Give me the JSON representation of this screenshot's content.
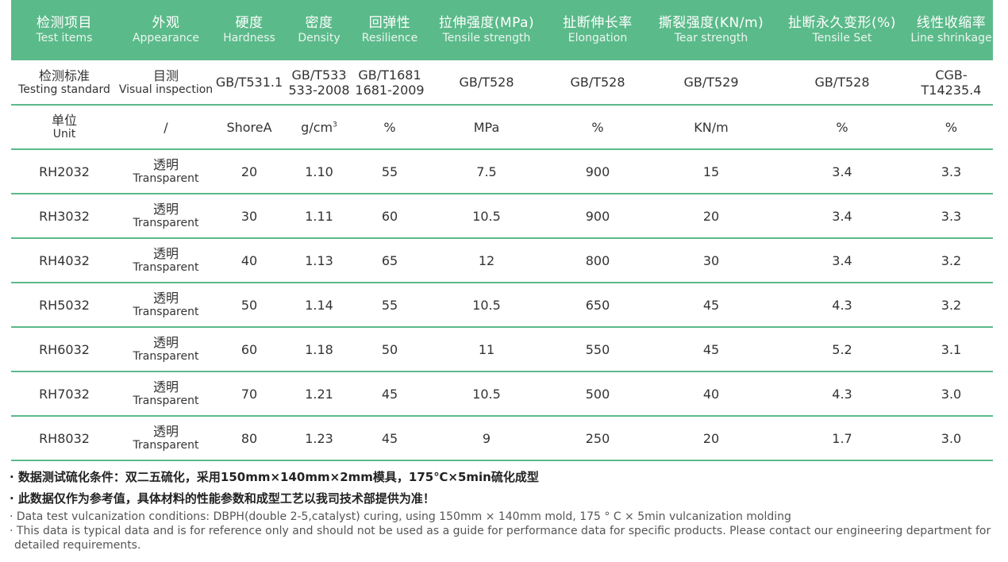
{
  "headers": [
    {
      "zh": "检测项目",
      "en": "Test items"
    },
    {
      "zh": "外观",
      "en": "Appearance"
    },
    {
      "zh": "硬度",
      "en": "Hardness"
    },
    {
      "zh": "密度",
      "en": "Density"
    },
    {
      "zh": "回弹性",
      "en": "Resilience"
    },
    {
      "zh": "拉伸强度(MPa)",
      "en": "Tensile strength"
    },
    {
      "zh": "扯断伸长率",
      "en": "Elongation"
    },
    {
      "zh": "撕裂强度(KN/m)",
      "en": "Tear strength"
    },
    {
      "zh": "扯断永久变形(%)",
      "en": "Tensile Set"
    },
    {
      "zh": "线性收缩率",
      "en": "Line shrinkage"
    }
  ],
  "standard_row": {
    "label_zh": "检测标准",
    "label_en": "Testing standard",
    "appearance_zh": "目测",
    "appearance_en": "Visual inspection",
    "hardness": "GB/T531.1",
    "density_l1": "GB/T533",
    "density_l2": "533-2008",
    "resilience_l1": "GB/T1681",
    "resilience_l2": "1681-2009",
    "tensile": "GB/T528",
    "elongation": "GB/T528",
    "tear": "GB/T529",
    "tensile_set": "GB/T528",
    "shrinkage": "CGB-T14235.4"
  },
  "unit_row": {
    "label_zh": "单位",
    "label_en": "Unit",
    "appearance": "/",
    "hardness": "ShoreA",
    "density": "g/cm",
    "density_sup": "3",
    "resilience": "%",
    "tensile": "MPa",
    "elongation": "%",
    "tear": "KN/m",
    "tensile_set": "%",
    "shrinkage": "%"
  },
  "rows": [
    {
      "model": "RH2032",
      "appearance_zh": "透明",
      "appearance_en": "Transparent",
      "hardness": "20",
      "density": "1.10",
      "resilience": "55",
      "tensile": "7.5",
      "elongation": "900",
      "tear": "15",
      "tensile_set": "3.4",
      "shrinkage": "3.3"
    },
    {
      "model": "RH3032",
      "appearance_zh": "透明",
      "appearance_en": "Transparent",
      "hardness": "30",
      "density": "1.11",
      "resilience": "60",
      "tensile": "10.5",
      "elongation": "900",
      "tear": "20",
      "tensile_set": "3.4",
      "shrinkage": "3.3"
    },
    {
      "model": "RH4032",
      "appearance_zh": "透明",
      "appearance_en": "Transparent",
      "hardness": "40",
      "density": "1.13",
      "resilience": "65",
      "tensile": "12",
      "elongation": "800",
      "tear": "30",
      "tensile_set": "3.4",
      "shrinkage": "3.2"
    },
    {
      "model": "RH5032",
      "appearance_zh": "透明",
      "appearance_en": "Transparent",
      "hardness": "50",
      "density": "1.14",
      "resilience": "55",
      "tensile": "10.5",
      "elongation": "650",
      "tear": "45",
      "tensile_set": "4.3",
      "shrinkage": "3.2"
    },
    {
      "model": "RH6032",
      "appearance_zh": "透明",
      "appearance_en": "Transparent",
      "hardness": "60",
      "density": "1.18",
      "resilience": "50",
      "tensile": "11",
      "elongation": "550",
      "tear": "45",
      "tensile_set": "5.2",
      "shrinkage": "3.1"
    },
    {
      "model": "RH7032",
      "appearance_zh": "透明",
      "appearance_en": "Transparent",
      "hardness": "70",
      "density": "1.21",
      "resilience": "45",
      "tensile": "10.5",
      "elongation": "500",
      "tear": "40",
      "tensile_set": "4.3",
      "shrinkage": "3.0"
    },
    {
      "model": "RH8032",
      "appearance_zh": "透明",
      "appearance_en": "Transparent",
      "hardness": "80",
      "density": "1.23",
      "resilience": "45",
      "tensile": "9",
      "elongation": "250",
      "tear": "20",
      "tensile_set": "1.7",
      "shrinkage": "3.0"
    }
  ],
  "notes": {
    "zh1": "· 数据测试硫化条件：双二五硫化，采用150mm×140mm×2mm模具，175℃×5min硫化成型",
    "zh2": "· 此数据仅作为参考值，具体材料的性能参数和成型工艺以我司技术部提供为准！",
    "en1": "· Data test vulcanization conditions: DBPH(double 2-5,catalyst) curing, using 150mm × 140mm mold, 175 ° C × 5min vulcanization molding",
    "en2": "· This data is typical data and is for reference only and should not be used as a guide for performance data for specific products. Please contact our engineering department for detailed requirements."
  },
  "colors": {
    "accent": "#5bba8a",
    "text": "#333333"
  }
}
